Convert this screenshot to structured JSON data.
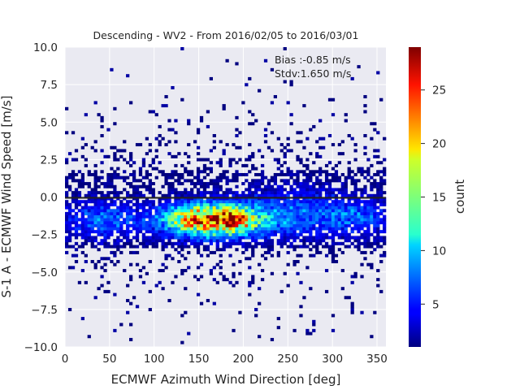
{
  "chart_data": {
    "type": "heatmap",
    "title": "Descending - WV2 - From 2016/02/05 to 2016/03/01",
    "xlabel": "ECMWF Azimuth Wind Direction [deg]",
    "ylabel": "S-1 A - ECMWF Wind Speed [m/s]",
    "xlim": [
      0,
      360
    ],
    "ylim": [
      -10,
      10
    ],
    "xticks": [
      "0",
      "50",
      "100",
      "150",
      "200",
      "250",
      "300",
      "350"
    ],
    "yticks": [
      "10.0",
      "7.5",
      "5.0",
      "2.5",
      "0.0",
      "−2.5",
      "−5.0",
      "−7.5",
      "−10.0"
    ],
    "grid": true,
    "colormap": "jet",
    "colorbar": {
      "label": "count",
      "range": [
        1,
        29
      ],
      "ticks": [
        "5",
        "10",
        "15",
        "20",
        "25"
      ]
    },
    "annotations": [
      "Bias :-0.85 m/s",
      "Stdv:1.650 m/s"
    ],
    "bias_line_y": -0.05,
    "bin_width_deg": 3.6,
    "bin_height_ms": 0.2,
    "density_model": [
      {
        "x": 165,
        "y": -1.5,
        "sx": 38,
        "sy": 0.75,
        "peak": 24
      },
      {
        "x": 190,
        "y": -1.6,
        "sx": 12,
        "sy": 0.35,
        "peak": 6
      },
      {
        "x": 40,
        "y": -1.5,
        "sx": 30,
        "sy": 0.9,
        "peak": 6
      },
      {
        "x": 330,
        "y": -1.3,
        "sx": 30,
        "sy": 0.9,
        "peak": 5
      },
      {
        "x": 260,
        "y": -1.0,
        "sx": 40,
        "sy": 1.2,
        "peak": 5
      }
    ]
  }
}
